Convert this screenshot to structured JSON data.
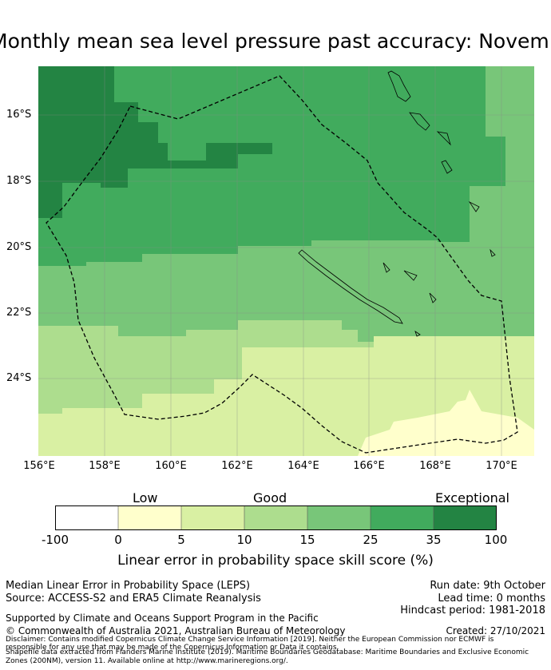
{
  "title": "Monthly mean sea level pressure past accuracy: November",
  "map": {
    "lat_labels": [
      "16°S",
      "18°S",
      "20°S",
      "22°S",
      "24°S"
    ],
    "lon_labels": [
      "156°E",
      "158°E",
      "160°E",
      "162°E",
      "164°E",
      "166°E",
      "168°E",
      "170°E"
    ]
  },
  "legend": {
    "categories": [
      "Low",
      "Good",
      "Exceptional"
    ],
    "ticks": [
      "-100",
      "0",
      "5",
      "10",
      "15",
      "25",
      "35",
      "100"
    ],
    "colors": [
      "#ffffff",
      "#ffffcc",
      "#d9f0a3",
      "#addd8e",
      "#78c679",
      "#41ab5d",
      "#238443"
    ],
    "label": "Linear error in probability space skill score (%)"
  },
  "footer": {
    "metric": "Median Linear Error in Probability Space (LEPS)",
    "source": "Source: ACCESS-S2 and ERA5 Climate Reanalysis",
    "run_date": "Run date: 9th October",
    "lead_time": "Lead time: 0 months",
    "hindcast": "Hindcast period: 1981-2018",
    "supported": "Supported by Climate and Oceans Support Program in the Pacific",
    "copyright": "© Commonwealth of Australia 2021, Australian Bureau of Meteorology",
    "created": "Created: 27/10/2021",
    "disclaimer_1": "Disclaimer: Contains modified Copernicus Climate Change Service Information [2019]. Neither the European Commission nor ECMWF is",
    "disclaimer_2": "responsible for any use that may be made of the Copernicus Information or Data it contains.",
    "disclaimer_3": "Shapefile data extracted from Flanders Marine Institute (2019). Maritime Boundaries Geodatabase: Maritime Boundaries and Exclusive Economic",
    "disclaimer_4": "Zones (200NM), version 11. Available online at http://www.marineregions.org/."
  }
}
